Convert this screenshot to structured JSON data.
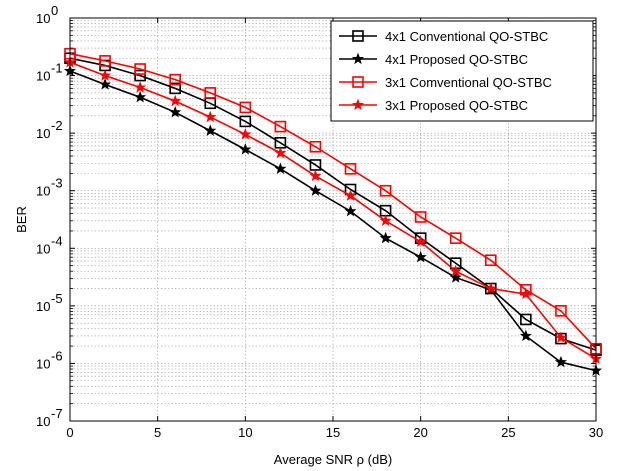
{
  "chart_data": {
    "type": "line",
    "xlabel": "Average SNR ρ (dB)",
    "ylabel": "BER",
    "xlim": [
      0,
      30
    ],
    "ylim_log10": [
      -7,
      0
    ],
    "y_scale": "log",
    "grid": true,
    "legend_position": "top-right",
    "x_ticks": [
      0,
      5,
      10,
      15,
      20,
      25,
      30
    ],
    "y_tick_exponents": [
      0,
      -1,
      -2,
      -3,
      -4,
      -5,
      -6,
      -7
    ],
    "y_tick_base": "10",
    "series": [
      {
        "name": "4x1 Conventional QO-STBC",
        "color": "#000000",
        "marker": "square",
        "x": [
          0,
          2,
          4,
          6,
          8,
          10,
          12,
          14,
          16,
          18,
          20,
          22,
          24,
          26,
          28,
          30
        ],
        "y": [
          0.2,
          0.15,
          0.1,
          0.06,
          0.033,
          0.016,
          0.0068,
          0.0028,
          0.00105,
          0.00045,
          0.00015,
          5.5e-05,
          2e-05,
          5.8e-06,
          2.7e-06,
          1.7e-06
        ]
      },
      {
        "name": "4x1 Proposed QO-STBC",
        "color": "#000000",
        "marker": "star",
        "x": [
          0,
          2,
          4,
          6,
          8,
          10,
          12,
          14,
          16,
          18,
          20,
          22,
          24,
          26,
          28,
          30
        ],
        "y": [
          0.12,
          0.07,
          0.042,
          0.023,
          0.011,
          0.0052,
          0.0024,
          0.001,
          0.00044,
          0.00015,
          7e-05,
          3.1e-05,
          1.9e-05,
          3e-06,
          1.05e-06,
          7.5e-07
        ]
      },
      {
        "name": "3x1 Comventional QO-STBC",
        "color": "#ff0000",
        "marker": "square",
        "x": [
          0,
          2,
          4,
          6,
          8,
          10,
          12,
          14,
          16,
          18,
          20,
          22,
          24,
          26,
          28,
          30
        ],
        "y": [
          0.24,
          0.18,
          0.13,
          0.085,
          0.05,
          0.028,
          0.013,
          0.0058,
          0.0024,
          0.001,
          0.00035,
          0.00015,
          6.2e-05,
          1.9e-05,
          8.2e-06,
          1.8e-06
        ]
      },
      {
        "name": "3x1 Proposed QO-STBC",
        "color": "#ff0000",
        "marker": "star",
        "x": [
          0,
          2,
          4,
          6,
          8,
          10,
          12,
          14,
          16,
          18,
          20,
          22,
          24,
          26,
          28,
          30
        ],
        "y": [
          0.17,
          0.1,
          0.062,
          0.036,
          0.019,
          0.0095,
          0.0045,
          0.0018,
          0.00082,
          0.0003,
          0.00013,
          4e-05,
          2e-05,
          1.6e-05,
          2.8e-06,
          1.2e-06
        ]
      }
    ]
  }
}
